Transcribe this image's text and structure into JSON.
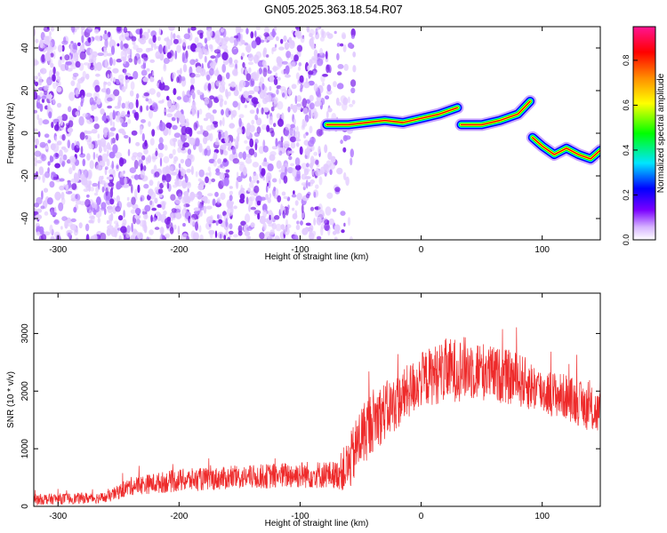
{
  "title": "GN05.2025.363.18.54.R07",
  "colors": {
    "snr_line": "#ee2a2a",
    "scatter": "#8a2be2",
    "colorbar_stops": [
      "#ffffff",
      "#d6b3ff",
      "#7a00ff",
      "#0000ff",
      "#00e5ff",
      "#00ff00",
      "#ffff00",
      "#ff8c00",
      "#ff0000",
      "#ff1493"
    ]
  },
  "chart_data": [
    {
      "type": "heatmap",
      "title": "GN05.2025.363.18.54.R07",
      "xlabel": "Height of straight line (km)",
      "ylabel": "Frequency (Hz)",
      "xlim": [
        -320,
        148
      ],
      "ylim": [
        -50,
        50
      ],
      "xticks": [
        "-300",
        "-200",
        "-100",
        "0",
        "100"
      ],
      "yticks": [
        "-40",
        "-20",
        "0",
        "20",
        "40"
      ],
      "colorbar": {
        "label": "Normalized spectral amplitude",
        "range": [
          0.0,
          0.95
        ],
        "ticks": [
          "0.0",
          "0.2",
          "0.4",
          "0.6",
          "0.8"
        ]
      },
      "noise_region": {
        "x_range": [
          -320,
          -60
        ],
        "freq_range": [
          -50,
          50
        ],
        "amplitude": "low (0.0-0.1)"
      },
      "tone_trace": {
        "description": "High-amplitude spectral line",
        "segments": [
          {
            "x": [
              -78,
              -60,
              -45,
              -30,
              -15,
              0,
              15,
              30
            ],
            "freq": [
              4,
              4,
              5,
              6,
              5,
              7,
              9,
              12
            ]
          },
          {
            "x": [
              33,
              50,
              65,
              80,
              90
            ],
            "freq": [
              4,
              4,
              6,
              9,
              15
            ]
          },
          {
            "x": [
              92,
              100,
              110,
              120,
              130,
              140,
              148
            ],
            "freq": [
              -2,
              -6,
              -10,
              -7,
              -10,
              -12,
              -8
            ]
          }
        ],
        "peak_amplitude": 0.95
      }
    },
    {
      "type": "line",
      "xlabel": "Height of straight line (km)",
      "ylabel": "SNR (10 * v/v)",
      "xlim": [
        -320,
        148
      ],
      "ylim": [
        0,
        3700
      ],
      "xticks": [
        "-300",
        "-200",
        "-100",
        "0",
        "100"
      ],
      "yticks": [
        "0",
        "1000",
        "2000",
        "3000"
      ],
      "envelope": {
        "x": [
          -320,
          -260,
          -240,
          -200,
          -150,
          -100,
          -70,
          -60,
          -50,
          -40,
          -20,
          0,
          20,
          40,
          60,
          80,
          100,
          120,
          148
        ],
        "center": [
          120,
          150,
          350,
          450,
          500,
          550,
          550,
          700,
          1200,
          1500,
          1800,
          2200,
          2350,
          2400,
          2300,
          2200,
          2000,
          1900,
          1600
        ],
        "spread": [
          120,
          120,
          200,
          250,
          250,
          300,
          300,
          600,
          700,
          700,
          600,
          600,
          700,
          700,
          600,
          600,
          500,
          500,
          500
        ]
      }
    }
  ]
}
